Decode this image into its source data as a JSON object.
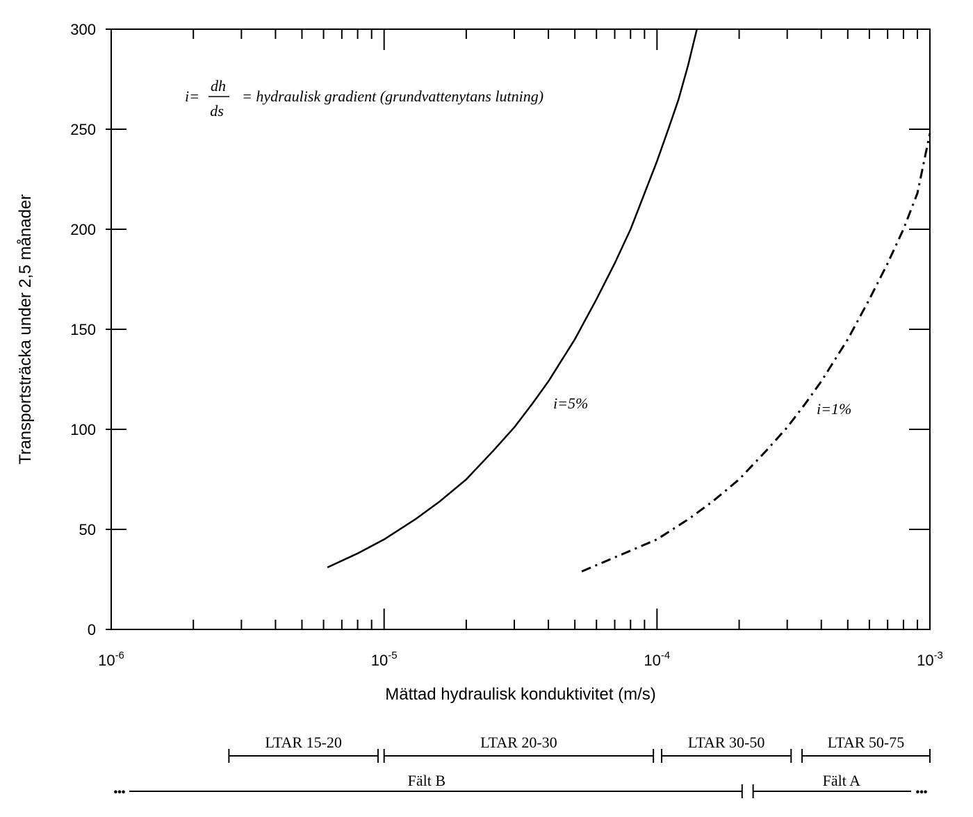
{
  "chart_data": {
    "type": "line",
    "xscale": "log",
    "xlim": [
      1e-06,
      0.001
    ],
    "ylim": [
      0,
      300
    ],
    "xlabel": "Mättad hydraulisk konduktivitet (m/s)",
    "ylabel": "Transportsträcka under 2,5 månader",
    "yticks": [
      "0",
      "50",
      "100",
      "150",
      "200",
      "250",
      "300"
    ],
    "xticks": [
      {
        "base": "10",
        "exp": "-6"
      },
      {
        "base": "10",
        "exp": "-5"
      },
      {
        "base": "10",
        "exp": "-4"
      },
      {
        "base": "10",
        "exp": "-3"
      }
    ],
    "annotation": {
      "prefix": "i=",
      "numerator": "dh",
      "denominator": "ds",
      "suffix": "= hydraulisk gradient (grundvattenytans lutning)"
    },
    "series": [
      {
        "name": "i=5%",
        "style": "solid",
        "x": [
          6.2e-06,
          8e-06,
          1e-05,
          1.3e-05,
          1.6e-05,
          2e-05,
          2.5e-05,
          3e-05,
          3.5e-05,
          4e-05,
          5e-05,
          6e-05,
          7e-05,
          8e-05,
          9e-05,
          0.0001,
          0.00011,
          0.00012,
          0.00013,
          0.00014
        ],
        "y": [
          31,
          38,
          45,
          55,
          64,
          75,
          89,
          101,
          113,
          124,
          145,
          165,
          183,
          200,
          218,
          234,
          250,
          265,
          282,
          300
        ]
      },
      {
        "name": "i=1%",
        "style": "dashdot",
        "x": [
          5.3e-05,
          7e-05,
          0.0001,
          0.00013,
          0.00016,
          0.0002,
          0.00025,
          0.0003,
          0.00035,
          0.0004,
          0.0005,
          0.0006,
          0.0007,
          0.0008,
          0.0009,
          0.001
        ],
        "y": [
          29,
          36,
          45,
          55,
          64,
          75,
          89,
          101,
          113,
          124,
          145,
          165,
          183,
          200,
          218,
          248
        ]
      }
    ]
  },
  "ranges": {
    "ltar": [
      {
        "label": "LTAR 15-20",
        "from": 2.7e-06,
        "to": 9.5e-06
      },
      {
        "label": "LTAR 20-30",
        "from": 1e-05,
        "to": 9.7e-05
      },
      {
        "label": "LTAR 30-50",
        "from": 0.000104,
        "to": 0.00031
      },
      {
        "label": "LTAR 50-75",
        "from": 0.00034,
        "to": 0.001
      }
    ],
    "falt": [
      {
        "label": "Fält B",
        "from": 1e-06,
        "to": 0.000205,
        "open_left": true
      },
      {
        "label": "Fält A",
        "from": 0.000225,
        "to": 0.001,
        "open_right": true
      }
    ],
    "ellipsis": "•••"
  }
}
